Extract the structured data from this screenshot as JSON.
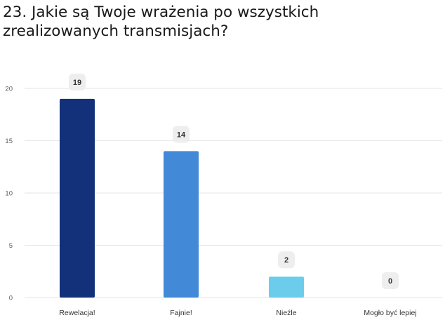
{
  "title": "23. Jakie są Twoje wrażenia po wszystkich zrealizowanych transmisjach?",
  "chart_data": {
    "type": "bar",
    "title": "",
    "xlabel": "",
    "ylabel": "",
    "categories": [
      "Rewelacja!",
      "Fajnie!",
      "Nieźle",
      "Mogło być lepiej"
    ],
    "values": [
      19,
      14,
      2,
      0
    ],
    "colors": [
      "#12317a",
      "#4289d8",
      "#6bcdeb",
      "#6bcdeb"
    ],
    "ylim": [
      0,
      20
    ],
    "yticks": [
      0,
      5,
      10,
      15,
      20
    ],
    "grid": true,
    "legend": "none"
  },
  "style": {
    "grid_color": "#e6e6e6",
    "label_bg": "#eeeeee"
  }
}
